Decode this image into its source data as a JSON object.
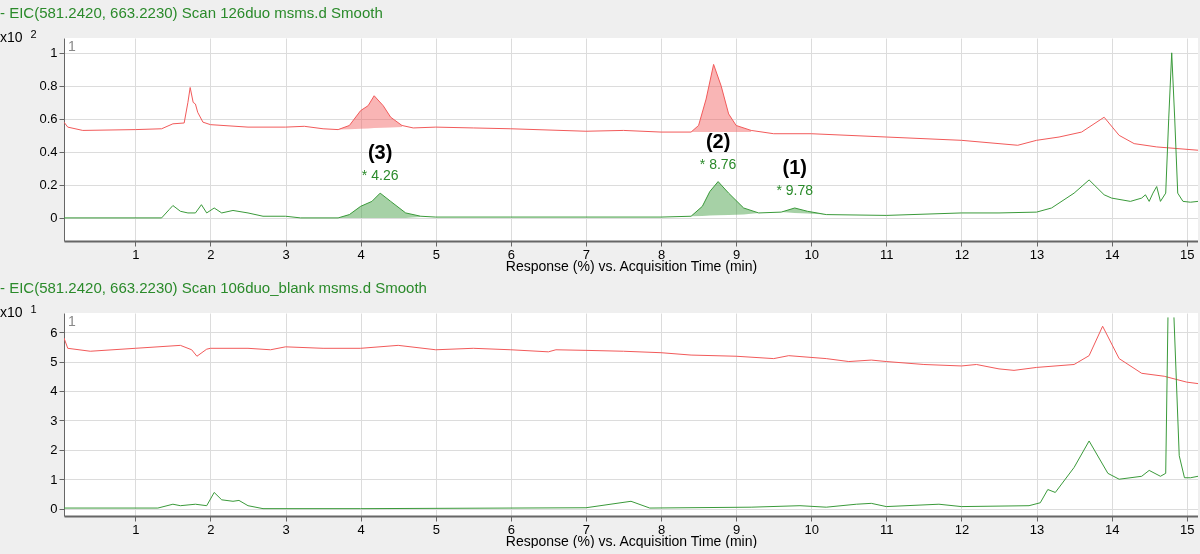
{
  "chart_data": [
    {
      "type": "line",
      "title": "- EIC(581.2420, 663.2230) Scan 126duo msms.d  Smooth",
      "xlabel": "Response (%) vs. Acquisition Time (min)",
      "ylabel": "x10 $^{2}$",
      "xlim": [
        0.05,
        15.15
      ],
      "ylim": [
        -0.14,
        1.09
      ],
      "xticks": [
        1,
        2,
        3,
        4,
        5,
        6,
        7,
        8,
        9,
        10,
        11,
        12,
        13,
        14,
        15
      ],
      "yticks": [
        0,
        0.2,
        0.4,
        0.6,
        0.8,
        1
      ],
      "grid": true,
      "annotations": [
        "1",
        {
          "text": "(3)",
          "x": 4.26,
          "y": 0.15
        },
        {
          "text": "* 4.26",
          "x": 4.26,
          "y": 0.15
        },
        {
          "text": "(2)",
          "x": 8.76,
          "y": 0.22
        },
        {
          "text": "* 8.76",
          "x": 8.76,
          "y": 0.22
        },
        {
          "text": "(1)",
          "x": 9.78,
          "y": 0.06
        },
        {
          "text": "* 9.78",
          "x": 9.78,
          "y": 0.06
        }
      ],
      "series": [
        {
          "color": "#f25a5a",
          "lower": [
            null,
            null,
            null,
            null,
            null,
            null,
            null,
            null,
            null,
            null,
            null,
            null,
            null,
            null,
            null,
            null,
            null,
            null,
            0.535,
            0.537,
            0.54,
            0.542,
            0.544,
            0.546,
            0.548,
            0.55,
            null,
            null,
            null,
            null,
            null,
            null,
            null,
            0.52,
            0.52,
            0.52,
            0.52,
            0.52,
            0.52,
            0.52,
            0.52,
            null,
            null,
            null,
            null,
            null,
            null,
            null,
            null,
            null,
            null,
            null,
            null,
            null,
            null
          ],
          "upper": [
            null,
            null,
            null,
            null,
            null,
            null,
            null,
            null,
            null,
            null,
            null,
            null,
            null,
            null,
            null,
            null,
            null,
            null,
            0.535,
            0.56,
            0.65,
            0.68,
            0.74,
            0.68,
            0.61,
            0.56,
            null,
            null,
            null,
            null,
            null,
            null,
            null,
            0.52,
            0.56,
            0.72,
            0.93,
            0.8,
            0.63,
            0.56,
            0.53,
            null,
            null,
            null,
            null,
            null,
            null,
            null,
            null,
            null,
            null,
            null,
            null,
            null,
            null
          ],
          "x": [
            0.05,
            0.1,
            0.3,
            1.0,
            1.35,
            1.5,
            1.65,
            1.7,
            1.73,
            1.77,
            1.8,
            1.83,
            1.9,
            2.0,
            2.5,
            3.0,
            3.25,
            3.5,
            3.7,
            3.85,
            4.0,
            4.1,
            4.18,
            4.3,
            4.4,
            4.55,
            4.7,
            5.0,
            5.5,
            6.0,
            7.0,
            7.5,
            8.0,
            8.4,
            8.5,
            8.6,
            8.7,
            8.8,
            8.9,
            9.0,
            9.2,
            9.5,
            10.0,
            11.0,
            12.0,
            12.5,
            12.75,
            13.0,
            13.3,
            13.6,
            13.9,
            14.1,
            14.3,
            14.6,
            15.15
          ],
          "values": [
            0.58,
            0.55,
            0.53,
            0.535,
            0.54,
            0.57,
            0.575,
            0.7,
            0.79,
            0.7,
            0.69,
            0.64,
            0.58,
            0.565,
            0.55,
            0.55,
            0.555,
            0.54,
            0.535,
            0.56,
            0.65,
            0.68,
            0.74,
            0.68,
            0.61,
            0.56,
            0.545,
            0.55,
            0.545,
            0.54,
            0.525,
            0.53,
            0.52,
            0.52,
            0.56,
            0.72,
            0.93,
            0.8,
            0.63,
            0.56,
            0.53,
            0.51,
            0.51,
            0.49,
            0.47,
            0.45,
            0.44,
            0.47,
            0.49,
            0.52,
            0.61,
            0.5,
            0.45,
            0.43,
            0.41
          ]
        },
        {
          "color": "#3a9a3a",
          "lower": [
            null,
            null,
            null,
            null,
            null,
            null,
            null,
            null,
            null,
            null,
            null,
            null,
            null,
            null,
            null,
            null,
            0,
            0,
            0,
            0,
            0,
            0,
            0,
            0.005,
            null,
            null,
            null,
            null,
            0.01,
            0.012,
            0.014,
            0.016,
            0.018,
            0.02,
            0.03,
            0.035,
            0.03,
            0.027,
            0.02,
            null,
            null,
            null,
            null,
            null,
            null,
            null,
            null,
            null,
            null,
            null,
            null,
            null,
            null,
            null,
            null,
            null,
            null,
            null,
            null,
            null,
            null,
            null,
            null
          ],
          "upper": [
            null,
            null,
            null,
            null,
            null,
            null,
            null,
            null,
            null,
            null,
            null,
            null,
            null,
            null,
            null,
            null,
            0,
            0.02,
            0.07,
            0.1,
            0.15,
            0.1,
            0.03,
            0.01,
            null,
            null,
            null,
            null,
            0.01,
            0.07,
            0.16,
            0.22,
            0.15,
            0.06,
            0.03,
            0.035,
            0.06,
            0.04,
            0.02,
            null,
            null,
            null,
            null,
            null,
            null,
            null,
            null,
            null,
            null,
            null,
            null,
            null,
            null,
            null,
            null,
            null,
            null,
            null,
            null,
            null,
            null,
            null,
            null
          ],
          "x": [
            0.05,
            1.35,
            1.45,
            1.5,
            1.6,
            1.7,
            1.8,
            1.88,
            1.95,
            2.05,
            2.15,
            2.3,
            2.5,
            2.7,
            3.0,
            3.2,
            3.7,
            3.85,
            4.0,
            4.15,
            4.26,
            4.4,
            4.6,
            4.8,
            5.0,
            6.0,
            7.0,
            8.0,
            8.4,
            8.55,
            8.65,
            8.76,
            8.9,
            9.1,
            9.3,
            9.6,
            9.78,
            9.95,
            10.2,
            11.0,
            12.0,
            12.5,
            13.0,
            13.2,
            13.5,
            13.7,
            13.9,
            14.0,
            14.25,
            14.4,
            14.45,
            14.5,
            14.55,
            14.6,
            14.65,
            14.72,
            14.76,
            14.8,
            14.84,
            14.88,
            14.95,
            15.05,
            15.15
          ],
          "values": [
            0,
            0,
            0.05,
            0.075,
            0.04,
            0.03,
            0.03,
            0.08,
            0.03,
            0.06,
            0.03,
            0.045,
            0.03,
            0.01,
            0.01,
            0,
            0,
            0.02,
            0.07,
            0.1,
            0.15,
            0.1,
            0.03,
            0.01,
            0.005,
            0.005,
            0.005,
            0.005,
            0.01,
            0.07,
            0.16,
            0.22,
            0.15,
            0.06,
            0.03,
            0.035,
            0.06,
            0.04,
            0.02,
            0.015,
            0.03,
            0.03,
            0.035,
            0.06,
            0.15,
            0.23,
            0.14,
            0.12,
            0.1,
            0.12,
            0.14,
            0.1,
            0.15,
            0.19,
            0.1,
            0.15,
            0.6,
            1.0,
            0.6,
            0.15,
            0.1,
            0.095,
            0.1
          ]
        }
      ]
    },
    {
      "type": "line",
      "title": "- EIC(581.2420, 663.2230) Scan 106duo_blank msms.d  Smooth",
      "xlabel": "Response (%) vs. Acquisition Time (min)",
      "ylabel": "x10 $^{1}$",
      "xlim": [
        0.05,
        15.15
      ],
      "ylim": [
        -0.25,
        6.65
      ],
      "xticks": [
        1,
        2,
        3,
        4,
        5,
        6,
        7,
        8,
        9,
        10,
        11,
        12,
        13,
        14,
        15
      ],
      "yticks": [
        0,
        1,
        2,
        3,
        4,
        5,
        6
      ],
      "grid": true,
      "annotations": [
        "1"
      ],
      "series": [
        {
          "color": "#f25a5a",
          "x": [
            0.05,
            0.1,
            0.4,
            1.0,
            1.6,
            1.75,
            1.82,
            1.95,
            2.0,
            2.5,
            2.8,
            3.0,
            3.5,
            4.0,
            4.5,
            5.0,
            5.5,
            6.0,
            6.5,
            6.6,
            7.0,
            7.5,
            8.0,
            8.4,
            9.0,
            9.5,
            9.7,
            10.2,
            10.5,
            10.8,
            11.0,
            11.5,
            12.0,
            12.2,
            12.5,
            12.7,
            13.0,
            13.5,
            13.7,
            13.88,
            14.1,
            14.4,
            14.7,
            15.0,
            15.15
          ],
          "values": [
            5.8,
            5.45,
            5.35,
            5.45,
            5.55,
            5.4,
            5.18,
            5.42,
            5.45,
            5.45,
            5.4,
            5.5,
            5.45,
            5.45,
            5.55,
            5.4,
            5.45,
            5.4,
            5.33,
            5.4,
            5.38,
            5.35,
            5.3,
            5.22,
            5.18,
            5.1,
            5.2,
            5.1,
            5.0,
            5.05,
            5.0,
            4.9,
            4.85,
            4.9,
            4.75,
            4.7,
            4.8,
            4.9,
            5.2,
            6.2,
            5.1,
            4.6,
            4.5,
            4.3,
            4.25
          ]
        },
        {
          "color": "#3a9a3a",
          "x": [
            0.05,
            1.3,
            1.5,
            1.6,
            1.8,
            1.95,
            2.05,
            2.15,
            2.3,
            2.38,
            2.5,
            2.7,
            4.0,
            7.0,
            7.6,
            7.85,
            9.2,
            9.85,
            10.2,
            10.6,
            10.8,
            11.0,
            11.7,
            12.0,
            12.9,
            13.05,
            13.15,
            13.25,
            13.5,
            13.7,
            13.95,
            14.1,
            14.4,
            14.5,
            14.65,
            14.72,
            14.75,
            14.79,
            14.83,
            14.9,
            14.97,
            15.05,
            15.15
          ],
          "values": [
            0.02,
            0.02,
            0.15,
            0.1,
            0.15,
            0.1,
            0.55,
            0.3,
            0.25,
            0.28,
            0.1,
            0.0,
            0.0,
            0.03,
            0.25,
            0.02,
            0.05,
            0.1,
            0.05,
            0.15,
            0.18,
            0.07,
            0.15,
            0.07,
            0.1,
            0.2,
            0.65,
            0.55,
            1.4,
            2.3,
            1.2,
            1.0,
            1.1,
            1.3,
            1.1,
            1.2,
            6.5,
            null,
            6.5,
            1.8,
            1.05,
            1.05,
            1.1
          ]
        }
      ]
    }
  ]
}
